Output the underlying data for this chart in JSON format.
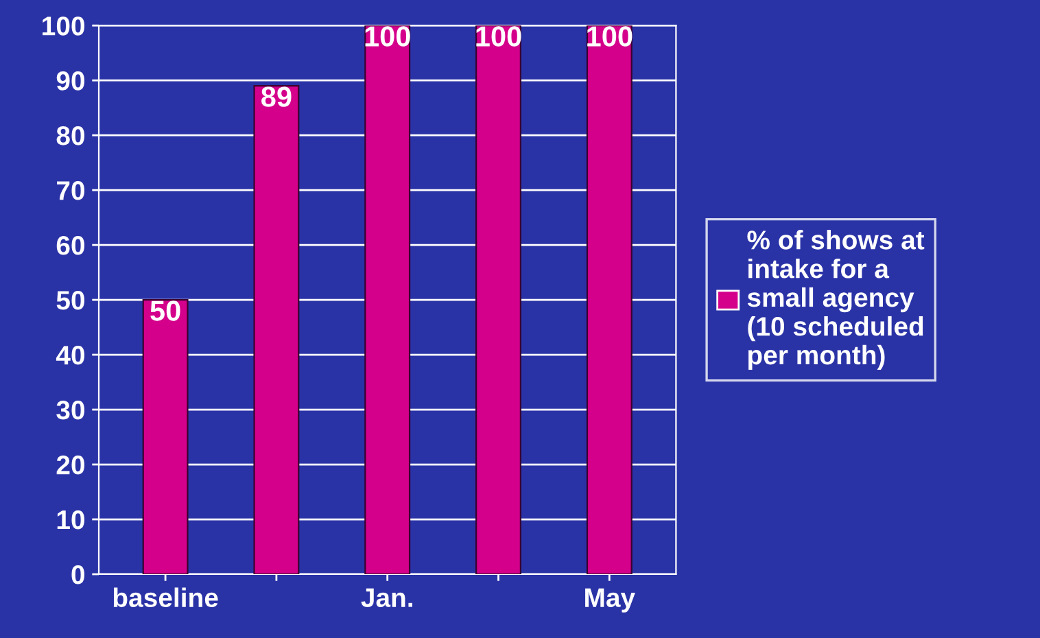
{
  "chart_data": {
    "type": "bar",
    "categories": [
      "baseline",
      null,
      "Jan.",
      null,
      "May"
    ],
    "series": [
      {
        "name": "% of shows at intake for a small agency (10 scheduled per month)",
        "color": "#d4008c",
        "values": [
          50,
          89,
          100,
          100,
          100
        ]
      }
    ],
    "ylim": [
      0,
      100
    ],
    "yticks": [
      0,
      10,
      20,
      30,
      40,
      50,
      60,
      70,
      80,
      90,
      100
    ],
    "grid": "y",
    "legend": "right",
    "data_labels": true
  }
}
